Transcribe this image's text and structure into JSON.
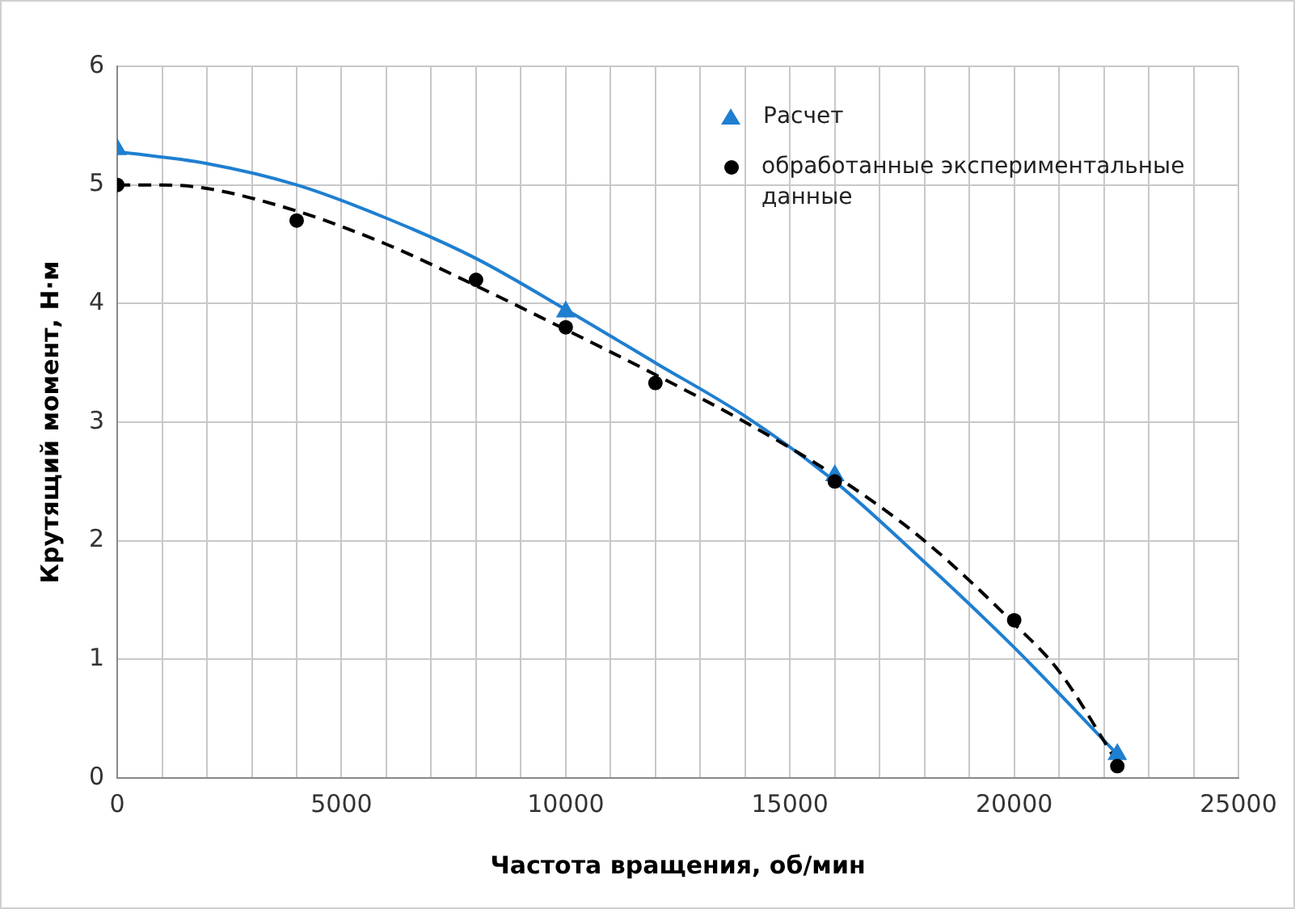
{
  "chart_data": {
    "type": "scatter",
    "xlabel": "Частота вращения, об/мин",
    "ylabel": "Крутящий момент, Н·м",
    "xlim": [
      0,
      25000
    ],
    "ylim": [
      0,
      6
    ],
    "xticks": [
      0,
      {
        "value": 1000,
        "label": null
      },
      {
        "value": 2000,
        "label": null
      },
      {
        "value": 3000,
        "label": null
      },
      {
        "value": 4000,
        "label": null
      },
      5000,
      {
        "value": 6000,
        "label": null
      },
      {
        "value": 7000,
        "label": null
      },
      {
        "value": 8000,
        "label": null
      },
      {
        "value": 9000,
        "label": null
      },
      10000,
      {
        "value": 11000,
        "label": null
      },
      {
        "value": 12000,
        "label": null
      },
      {
        "value": 13000,
        "label": null
      },
      {
        "value": 14000,
        "label": null
      },
      15000,
      {
        "value": 16000,
        "label": null
      },
      {
        "value": 17000,
        "label": null
      },
      {
        "value": 18000,
        "label": null
      },
      {
        "value": 19000,
        "label": null
      },
      20000,
      {
        "value": 21000,
        "label": null
      },
      {
        "value": 22000,
        "label": null
      },
      {
        "value": 23000,
        "label": null
      },
      {
        "value": 24000,
        "label": null
      },
      25000
    ],
    "yticks": [
      0,
      1,
      2,
      3,
      4,
      5,
      6
    ],
    "grid": true,
    "legend": "top right",
    "series": [
      {
        "type": "line",
        "color": "#1f7fd0",
        "marker": "none",
        "line_style": "solid",
        "x": [
          0,
          2000,
          4000,
          6000,
          8000,
          10000,
          12000,
          14000,
          16000,
          18000,
          20000,
          22300
        ],
        "values": [
          5.28,
          5.18,
          5.0,
          4.72,
          4.38,
          3.95,
          3.5,
          3.05,
          2.5,
          1.82,
          1.1,
          0.2
        ]
      },
      {
        "type": "line",
        "color": "#000000",
        "marker": "none",
        "line_style": "dashed",
        "x": [
          0,
          1000,
          2000,
          4000,
          6000,
          8000,
          10000,
          12000,
          14000,
          16000,
          18000,
          20000,
          21000,
          22300
        ],
        "values": [
          5.0,
          5.0,
          4.97,
          4.78,
          4.5,
          4.15,
          3.78,
          3.4,
          3.0,
          2.55,
          2.0,
          1.3,
          0.9,
          0.13
        ]
      },
      {
        "name": "Расчет",
        "color": "#1f7fd0",
        "marker": "triangle",
        "x": [
          0,
          10000,
          16000,
          22300
        ],
        "values": [
          5.3,
          3.93,
          2.55,
          0.2
        ]
      },
      {
        "name": "обработанные экспериментальные данные",
        "color": "#000000",
        "marker": "circle",
        "x": [
          0,
          4000,
          8000,
          10000,
          12000,
          16000,
          20000,
          22300
        ],
        "values": [
          5.0,
          4.7,
          4.2,
          3.8,
          3.33,
          2.5,
          1.33,
          0.1
        ]
      }
    ]
  }
}
